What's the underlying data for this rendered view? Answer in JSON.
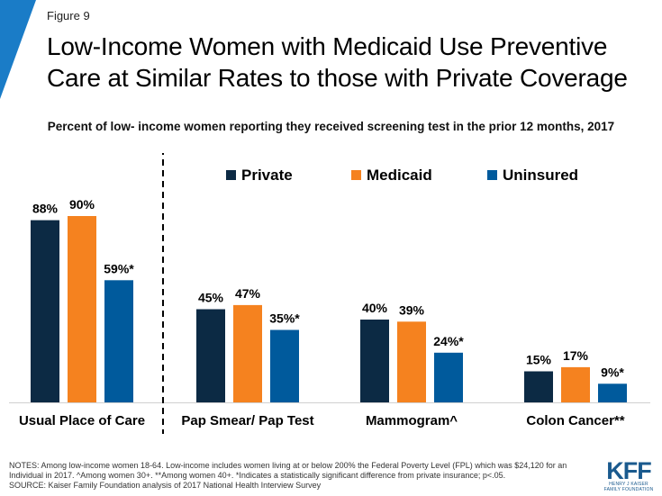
{
  "figure_label": "Figure 9",
  "title": "Low-Income Women with Medicaid Use Preventive Care at Similar Rates to those with Private Coverage",
  "subtitle": "Percent of low- income women reporting they received screening test in the prior 12 months, 2017",
  "colors": {
    "accent": "#1a7cc7",
    "private": "#0c2a44",
    "medicaid": "#f5821f",
    "uninsured": "#005a9c",
    "divider": "#000000"
  },
  "chart_data": {
    "type": "bar",
    "categories": [
      "Usual Place of Care",
      "Pap Smear/ Pap Test",
      "Mammogram^",
      "Colon Cancer**"
    ],
    "series": [
      {
        "name": "Private",
        "values": [
          88,
          45,
          40,
          15
        ],
        "labels": [
          "88%",
          "45%",
          "40%",
          "15%"
        ]
      },
      {
        "name": "Medicaid",
        "values": [
          90,
          47,
          39,
          17
        ],
        "labels": [
          "90%",
          "47%",
          "39%",
          "17%"
        ]
      },
      {
        "name": "Uninsured",
        "values": [
          59,
          35,
          24,
          9
        ],
        "labels": [
          "59%*",
          "35%*",
          "24%*",
          "9%*"
        ]
      }
    ],
    "ylim": [
      0,
      100
    ],
    "legend_position": "top",
    "grid": false,
    "divider_after_category": "Usual Place of Care"
  },
  "notes": "NOTES: Among low-income women 18-64. Low-income includes women living at or below 200% the Federal Poverty Level (FPL) which was $24,120 for an Individual in 2017. ^Among women 30+. **Among women 40+. *Indicates a statistically significant difference from private insurance; p<.05.",
  "source": "SOURCE: Kaiser Family Foundation analysis of 2017 National Health Interview Survey",
  "logo": {
    "main": "KFF",
    "sub_1": "HENRY J KAISER",
    "sub_2": "FAMILY FOUNDATION"
  }
}
